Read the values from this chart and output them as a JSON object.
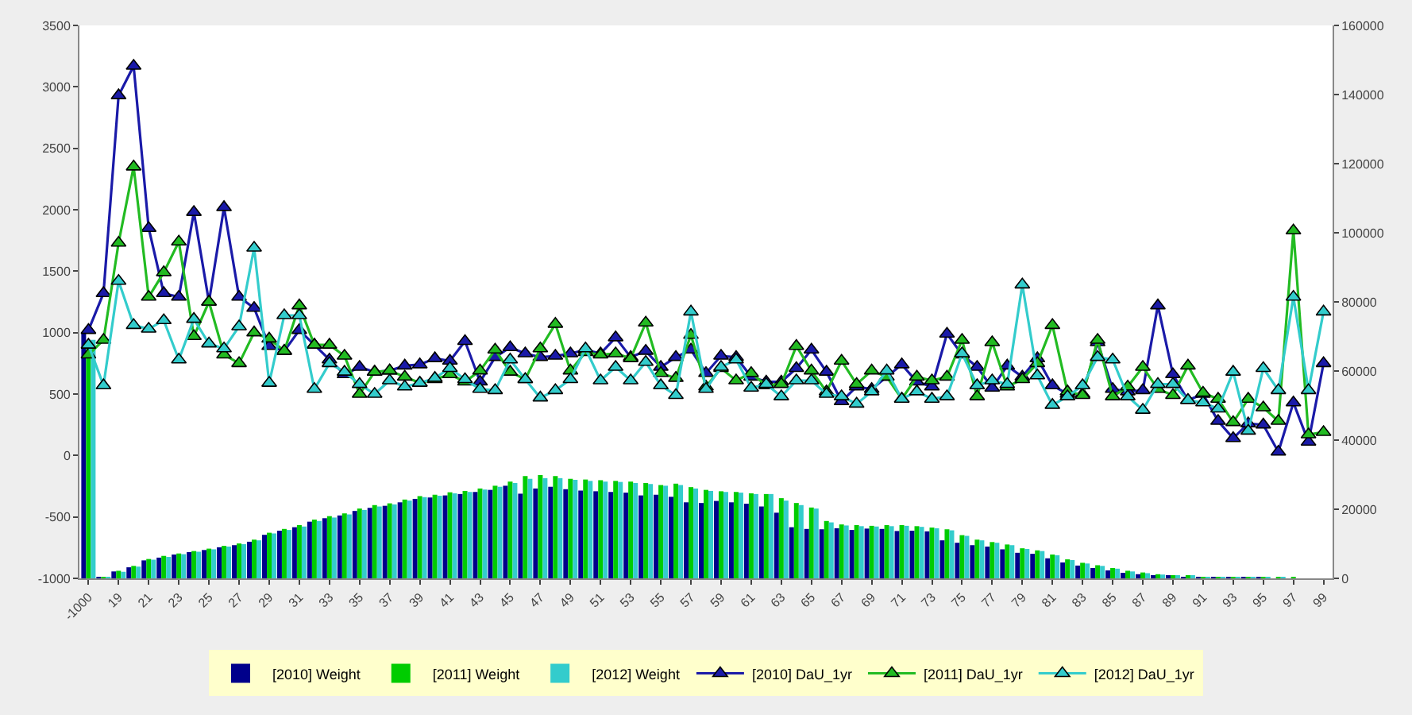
{
  "chart_data": {
    "type": "bar",
    "categories": [
      "-1000",
      null,
      "19",
      null,
      "21",
      null,
      "23",
      null,
      "25",
      null,
      "27",
      null,
      "29",
      null,
      "31",
      null,
      "33",
      null,
      "35",
      null,
      "37",
      null,
      "39",
      null,
      "41",
      null,
      "43",
      null,
      "45",
      null,
      "47",
      null,
      "49",
      null,
      "51",
      null,
      "53",
      null,
      "55",
      null,
      "57",
      null,
      "59",
      null,
      "61",
      null,
      "63",
      null,
      "65",
      null,
      "67",
      null,
      "69",
      null,
      "71",
      null,
      "73",
      null,
      "75",
      null,
      "77",
      null,
      "79",
      null,
      "81",
      null,
      "83",
      null,
      "85",
      null,
      "87",
      null,
      "89",
      null,
      "91",
      null,
      "93",
      null,
      "95",
      null,
      "97",
      null,
      "99"
    ],
    "series": [
      {
        "name": "[2010] Weight",
        "axis": "y2",
        "color": "#00008b",
        "values": [
          71000,
          200,
          2000,
          3200,
          5200,
          6000,
          6900,
          7600,
          8200,
          9000,
          9600,
          10600,
          12600,
          13800,
          14800,
          16400,
          17400,
          18200,
          19500,
          20400,
          21000,
          22000,
          23000,
          23400,
          24000,
          24400,
          25000,
          25600,
          26800,
          24500,
          26000,
          26500,
          25800,
          25400,
          25200,
          25000,
          24800,
          24000,
          24200,
          23600,
          22000,
          21800,
          22400,
          22000,
          21600,
          20800,
          19000,
          14800,
          14300,
          14200,
          14500,
          14000,
          14400,
          14300,
          13700,
          13800,
          13600,
          11000,
          10300,
          9600,
          9200,
          8400,
          7400,
          7100,
          5800,
          4600,
          3700,
          3000,
          2300,
          1600,
          1200,
          800,
          600,
          400,
          300,
          200,
          100,
          100,
          100,
          0,
          0,
          0,
          0
        ]
      },
      {
        "name": "[2011] Weight",
        "axis": "y2",
        "color": "#00cc00",
        "values": [
          67000,
          300,
          2200,
          3600,
          5600,
          6500,
          7200,
          7900,
          8600,
          9400,
          10100,
          11200,
          13200,
          14300,
          15400,
          17000,
          18000,
          18800,
          20200,
          21200,
          21700,
          22800,
          23800,
          24200,
          24900,
          25300,
          26000,
          26800,
          28000,
          29600,
          29900,
          29600,
          28800,
          28600,
          28400,
          28200,
          28000,
          27600,
          27000,
          27400,
          26400,
          25600,
          25200,
          25000,
          24600,
          24400,
          23200,
          21800,
          20500,
          16600,
          15600,
          15400,
          15200,
          15400,
          15400,
          15100,
          14700,
          14200,
          12500,
          11200,
          10500,
          9800,
          8700,
          8100,
          6900,
          5500,
          4500,
          3800,
          3000,
          2200,
          1700,
          1200,
          900,
          600,
          400,
          300,
          200,
          100,
          100,
          100,
          100,
          0,
          0
        ]
      },
      {
        "name": "[2012] Weight",
        "axis": "y2",
        "color": "#33cccc",
        "values": [
          69000,
          400,
          1900,
          3400,
          5400,
          6200,
          7000,
          7700,
          8400,
          9200,
          9900,
          11000,
          13000,
          14000,
          15000,
          16600,
          17600,
          18500,
          19800,
          20800,
          21400,
          22500,
          23500,
          23900,
          24600,
          25000,
          25700,
          26500,
          27600,
          28800,
          29000,
          29000,
          28500,
          28200,
          28000,
          27900,
          27600,
          27300,
          26800,
          27000,
          26000,
          25300,
          25000,
          24800,
          24400,
          24400,
          22500,
          21200,
          20200,
          16200,
          15300,
          15100,
          15000,
          15100,
          15200,
          14900,
          14500,
          13900,
          12300,
          11000,
          10300,
          9600,
          8500,
          7900,
          6700,
          5300,
          4300,
          3600,
          2800,
          2000,
          1500,
          1100,
          800,
          500,
          400,
          300,
          200,
          100,
          100,
          100,
          0,
          0,
          0
        ]
      },
      {
        "name": "[2010] DaU_1yr",
        "type": "line",
        "axis": "y",
        "color": "#1a1aa8",
        "values": [
          1020,
          1320,
          2930,
          3170,
          1850,
          1320,
          1290,
          1980,
          1250,
          2020,
          1290,
          1200,
          890,
          850,
          1020,
          900,
          780,
          660,
          720,
          680,
          690,
          730,
          740,
          790,
          770,
          930,
          600,
          800,
          880,
          830,
          800,
          810,
          830,
          860,
          830,
          960,
          800,
          850,
          720,
          800,
          860,
          670,
          810,
          800,
          640,
          600,
          600,
          710,
          860,
          680,
          440,
          560,
          540,
          640,
          740,
          600,
          560,
          990,
          820,
          720,
          550,
          730,
          640,
          790,
          570,
          500,
          500,
          920,
          540,
          520,
          530,
          1220,
          660,
          450,
          500,
          280,
          140,
          260,
          250,
          30,
          430,
          110,
          750
        ]
      },
      {
        "name": "[2011] DaU_1yr",
        "type": "line",
        "axis": "y",
        "color": "#22bb22",
        "values": [
          820,
          940,
          1730,
          2350,
          1290,
          1490,
          1740,
          970,
          1250,
          820,
          750,
          1000,
          950,
          850,
          1220,
          900,
          900,
          810,
          500,
          680,
          690,
          640,
          590,
          620,
          660,
          600,
          690,
          860,
          680,
          620,
          870,
          1070,
          690,
          840,
          820,
          830,
          790,
          1080,
          670,
          630,
          980,
          560,
          710,
          610,
          670,
          570,
          580,
          890,
          690,
          520,
          770,
          580,
          690,
          640,
          460,
          640,
          610,
          640,
          940,
          480,
          920,
          560,
          620,
          750,
          1060,
          520,
          490,
          940,
          480,
          560,
          720,
          540,
          490,
          730,
          510,
          460,
          270,
          460,
          390,
          280,
          1830,
          170,
          190
        ]
      },
      {
        "name": "[2012] DaU_1yr",
        "type": "line",
        "axis": "y",
        "color": "#33cccc",
        "values": [
          900,
          570,
          1420,
          1060,
          1030,
          1100,
          780,
          1110,
          910,
          870,
          1050,
          1690,
          590,
          1140,
          1140,
          540,
          750,
          680,
          580,
          500,
          610,
          560,
          590,
          630,
          710,
          620,
          540,
          530,
          780,
          620,
          470,
          530,
          620,
          870,
          610,
          720,
          610,
          760,
          570,
          490,
          1170,
          540,
          720,
          780,
          550,
          580,
          480,
          610,
          610,
          500,
          480,
          420,
          520,
          690,
          460,
          520,
          460,
          480,
          830,
          570,
          610,
          580,
          1390,
          650,
          410,
          480,
          570,
          800,
          780,
          480,
          370,
          580,
          580,
          450,
          430,
          380,
          680,
          200,
          710,
          530,
          1290,
          530,
          1170
        ]
      }
    ],
    "ylim": [
      -1000,
      3500
    ],
    "yticks": [
      -1000,
      -500,
      0,
      500,
      1000,
      1500,
      2000,
      2500,
      3000,
      3500
    ],
    "y2lim": [
      0,
      160000
    ],
    "y2ticks": [
      0,
      20000,
      40000,
      60000,
      80000,
      100000,
      120000,
      140000,
      160000
    ],
    "marker": "triangle",
    "grid": false,
    "legend": "bottom"
  }
}
